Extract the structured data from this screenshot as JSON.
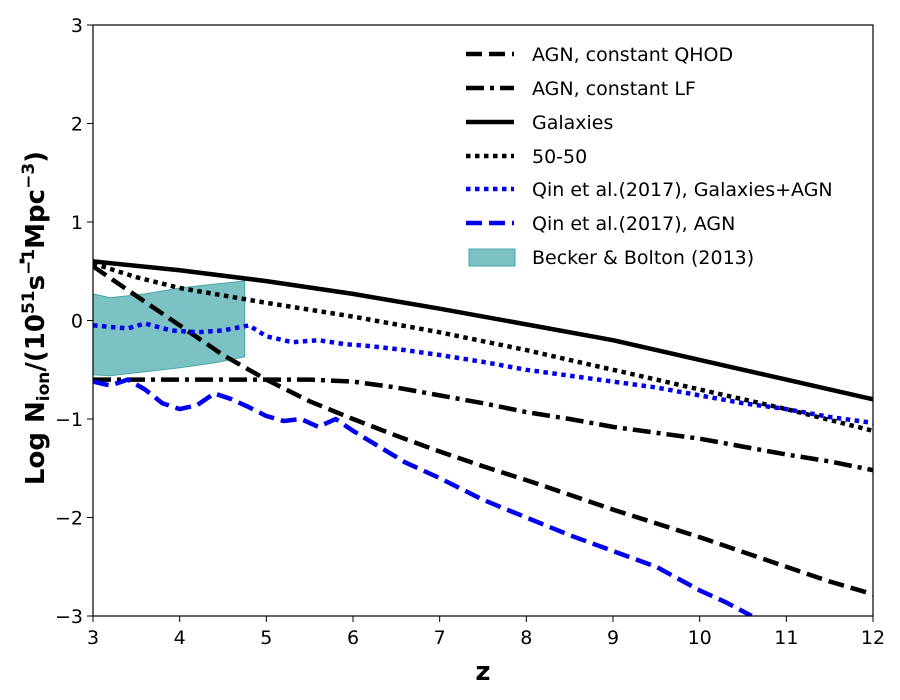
{
  "chart_data": {
    "type": "line",
    "xlabel": "z",
    "ylabel_parts": [
      "Log ",
      "N",
      "ion",
      "/(10",
      "51",
      "s",
      "−1",
      "Mpc",
      "−3",
      ")"
    ],
    "xlim": [
      3,
      12
    ],
    "ylim": [
      -3,
      3
    ],
    "x_ticks": [
      3,
      4,
      5,
      6,
      7,
      8,
      9,
      10,
      11,
      12
    ],
    "y_ticks": [
      -3,
      -2,
      -1,
      0,
      1,
      2,
      3
    ],
    "x_tick_labels": [
      "3",
      "4",
      "5",
      "6",
      "7",
      "8",
      "9",
      "10",
      "11",
      "12"
    ],
    "y_tick_labels": [
      "−3",
      "−2",
      "−1",
      "0",
      "1",
      "2",
      "3"
    ],
    "legend_position": "top-right",
    "band": {
      "name": "Becker &  Bolton (2013)",
      "color": "#7cc2c4",
      "edge_color": "#4aa6a8",
      "upper": [
        [
          3.0,
          0.27
        ],
        [
          3.2,
          0.23
        ],
        [
          3.6,
          0.27
        ],
        [
          4.0,
          0.33
        ],
        [
          4.4,
          0.37
        ],
        [
          4.75,
          0.4
        ]
      ],
      "lower": [
        [
          3.0,
          -0.55
        ],
        [
          3.2,
          -0.56
        ],
        [
          3.6,
          -0.52
        ],
        [
          4.0,
          -0.48
        ],
        [
          4.4,
          -0.43
        ],
        [
          4.75,
          -0.37
        ]
      ]
    },
    "series": [
      {
        "name": "AGN, constant QHOD",
        "color": "#000000",
        "style": "dashed",
        "points": [
          [
            3.0,
            0.55
          ],
          [
            3.5,
            0.25
          ],
          [
            4.0,
            -0.05
          ],
          [
            4.5,
            -0.35
          ],
          [
            5.0,
            -0.6
          ],
          [
            5.5,
            -0.82
          ],
          [
            6.0,
            -1.0
          ],
          [
            6.5,
            -1.17
          ],
          [
            7.0,
            -1.33
          ],
          [
            7.5,
            -1.48
          ],
          [
            8.0,
            -1.62
          ],
          [
            8.5,
            -1.77
          ],
          [
            9.0,
            -1.92
          ],
          [
            9.5,
            -2.06
          ],
          [
            10.0,
            -2.2
          ],
          [
            10.5,
            -2.35
          ],
          [
            11.0,
            -2.5
          ],
          [
            11.5,
            -2.65
          ],
          [
            12.0,
            -2.78
          ]
        ]
      },
      {
        "name": "AGN, constant LF",
        "color": "#000000",
        "style": "dashdot",
        "points": [
          [
            3.0,
            -0.6
          ],
          [
            3.5,
            -0.6
          ],
          [
            4.0,
            -0.6
          ],
          [
            4.5,
            -0.6
          ],
          [
            5.0,
            -0.6
          ],
          [
            5.5,
            -0.6
          ],
          [
            6.0,
            -0.62
          ],
          [
            6.5,
            -0.68
          ],
          [
            7.0,
            -0.76
          ],
          [
            7.5,
            -0.84
          ],
          [
            8.0,
            -0.93
          ],
          [
            8.5,
            -1.0
          ],
          [
            9.0,
            -1.08
          ],
          [
            9.5,
            -1.14
          ],
          [
            10.0,
            -1.2
          ],
          [
            10.5,
            -1.28
          ],
          [
            11.0,
            -1.36
          ],
          [
            11.5,
            -1.43
          ],
          [
            12.0,
            -1.52
          ]
        ]
      },
      {
        "name": "Galaxies",
        "color": "#000000",
        "style": "solid",
        "points": [
          [
            3.0,
            0.6
          ],
          [
            4.0,
            0.51
          ],
          [
            5.0,
            0.4
          ],
          [
            6.0,
            0.27
          ],
          [
            7.0,
            0.12
          ],
          [
            8.0,
            -0.04
          ],
          [
            9.0,
            -0.2
          ],
          [
            10.0,
            -0.4
          ],
          [
            11.0,
            -0.6
          ],
          [
            12.0,
            -0.8
          ]
        ]
      },
      {
        "name": "50-50",
        "color": "#000000",
        "style": "dotted",
        "points": [
          [
            3.0,
            0.58
          ],
          [
            3.5,
            0.44
          ],
          [
            4.0,
            0.33
          ],
          [
            5.0,
            0.18
          ],
          [
            6.0,
            0.04
          ],
          [
            7.0,
            -0.12
          ],
          [
            8.0,
            -0.3
          ],
          [
            9.0,
            -0.5
          ],
          [
            10.0,
            -0.7
          ],
          [
            11.0,
            -0.9
          ],
          [
            12.0,
            -1.12
          ]
        ]
      },
      {
        "name": "Qin et al.(2017), Galaxies+AGN",
        "color": "#0000ee",
        "style": "dotted",
        "points": [
          [
            3.0,
            -0.05
          ],
          [
            3.4,
            -0.08
          ],
          [
            3.6,
            -0.03
          ],
          [
            3.9,
            -0.1
          ],
          [
            4.2,
            -0.12
          ],
          [
            4.5,
            -0.1
          ],
          [
            4.8,
            -0.05
          ],
          [
            5.0,
            -0.16
          ],
          [
            5.3,
            -0.22
          ],
          [
            5.6,
            -0.2
          ],
          [
            5.9,
            -0.24
          ],
          [
            6.2,
            -0.26
          ],
          [
            6.6,
            -0.3
          ],
          [
            7.0,
            -0.35
          ],
          [
            7.5,
            -0.42
          ],
          [
            8.0,
            -0.5
          ],
          [
            8.5,
            -0.56
          ],
          [
            9.0,
            -0.62
          ],
          [
            9.5,
            -0.68
          ],
          [
            10.0,
            -0.76
          ],
          [
            10.5,
            -0.84
          ],
          [
            11.0,
            -0.9
          ],
          [
            11.5,
            -0.98
          ],
          [
            12.0,
            -1.04
          ]
        ]
      },
      {
        "name": "Qin et al.(2017), AGN",
        "color": "#0000ee",
        "style": "dashed",
        "points": [
          [
            3.0,
            -0.62
          ],
          [
            3.2,
            -0.66
          ],
          [
            3.4,
            -0.6
          ],
          [
            3.6,
            -0.7
          ],
          [
            3.8,
            -0.84
          ],
          [
            4.0,
            -0.9
          ],
          [
            4.2,
            -0.86
          ],
          [
            4.4,
            -0.74
          ],
          [
            4.6,
            -0.8
          ],
          [
            4.8,
            -0.88
          ],
          [
            5.0,
            -0.97
          ],
          [
            5.2,
            -1.02
          ],
          [
            5.4,
            -1.0
          ],
          [
            5.6,
            -1.08
          ],
          [
            5.8,
            -1.0
          ],
          [
            6.0,
            -1.12
          ],
          [
            6.3,
            -1.28
          ],
          [
            6.6,
            -1.44
          ],
          [
            7.0,
            -1.6
          ],
          [
            7.5,
            -1.82
          ],
          [
            8.0,
            -2.0
          ],
          [
            8.5,
            -2.18
          ],
          [
            9.0,
            -2.34
          ],
          [
            9.5,
            -2.5
          ],
          [
            10.0,
            -2.74
          ],
          [
            10.3,
            -2.86
          ],
          [
            10.6,
            -3.0
          ]
        ]
      }
    ]
  }
}
